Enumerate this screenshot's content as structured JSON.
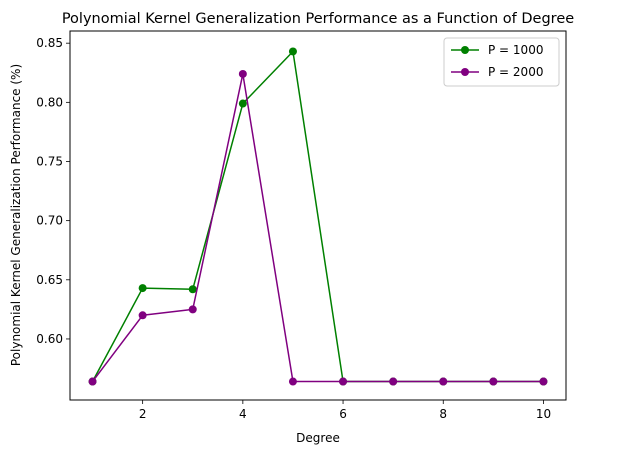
{
  "chart_data": {
    "type": "line",
    "title": "Polynomial Kernel Generalization Performance as a Function of Degree",
    "xlabel": "Degree",
    "ylabel": "Polynomial Kernel Generalization Performance (%)",
    "x": [
      1,
      2,
      3,
      4,
      5,
      6,
      7,
      8,
      9,
      10
    ],
    "xlim": [
      0.55,
      10.45
    ],
    "ylim": [
      0.5484,
      0.8603
    ],
    "xticks": [
      2,
      4,
      6,
      8,
      10
    ],
    "xtick_labels": [
      "2",
      "4",
      "6",
      "8",
      "10"
    ],
    "yticks": [
      0.6,
      0.65,
      0.7,
      0.75,
      0.8,
      0.85
    ],
    "ytick_labels": [
      "0.60",
      "0.65",
      "0.70",
      "0.75",
      "0.80",
      "0.85"
    ],
    "grid": false,
    "legend_position": "upper right",
    "series": [
      {
        "name": "P = 1000",
        "color": "#008000",
        "marker": "circle",
        "values": [
          0.564,
          0.643,
          0.642,
          0.799,
          0.843,
          0.564,
          0.564,
          0.564,
          0.564,
          0.564
        ]
      },
      {
        "name": "P = 2000",
        "color": "#800080",
        "marker": "circle",
        "values": [
          0.564,
          0.62,
          0.625,
          0.824,
          0.564,
          0.564,
          0.564,
          0.564,
          0.564,
          0.564
        ]
      }
    ]
  }
}
